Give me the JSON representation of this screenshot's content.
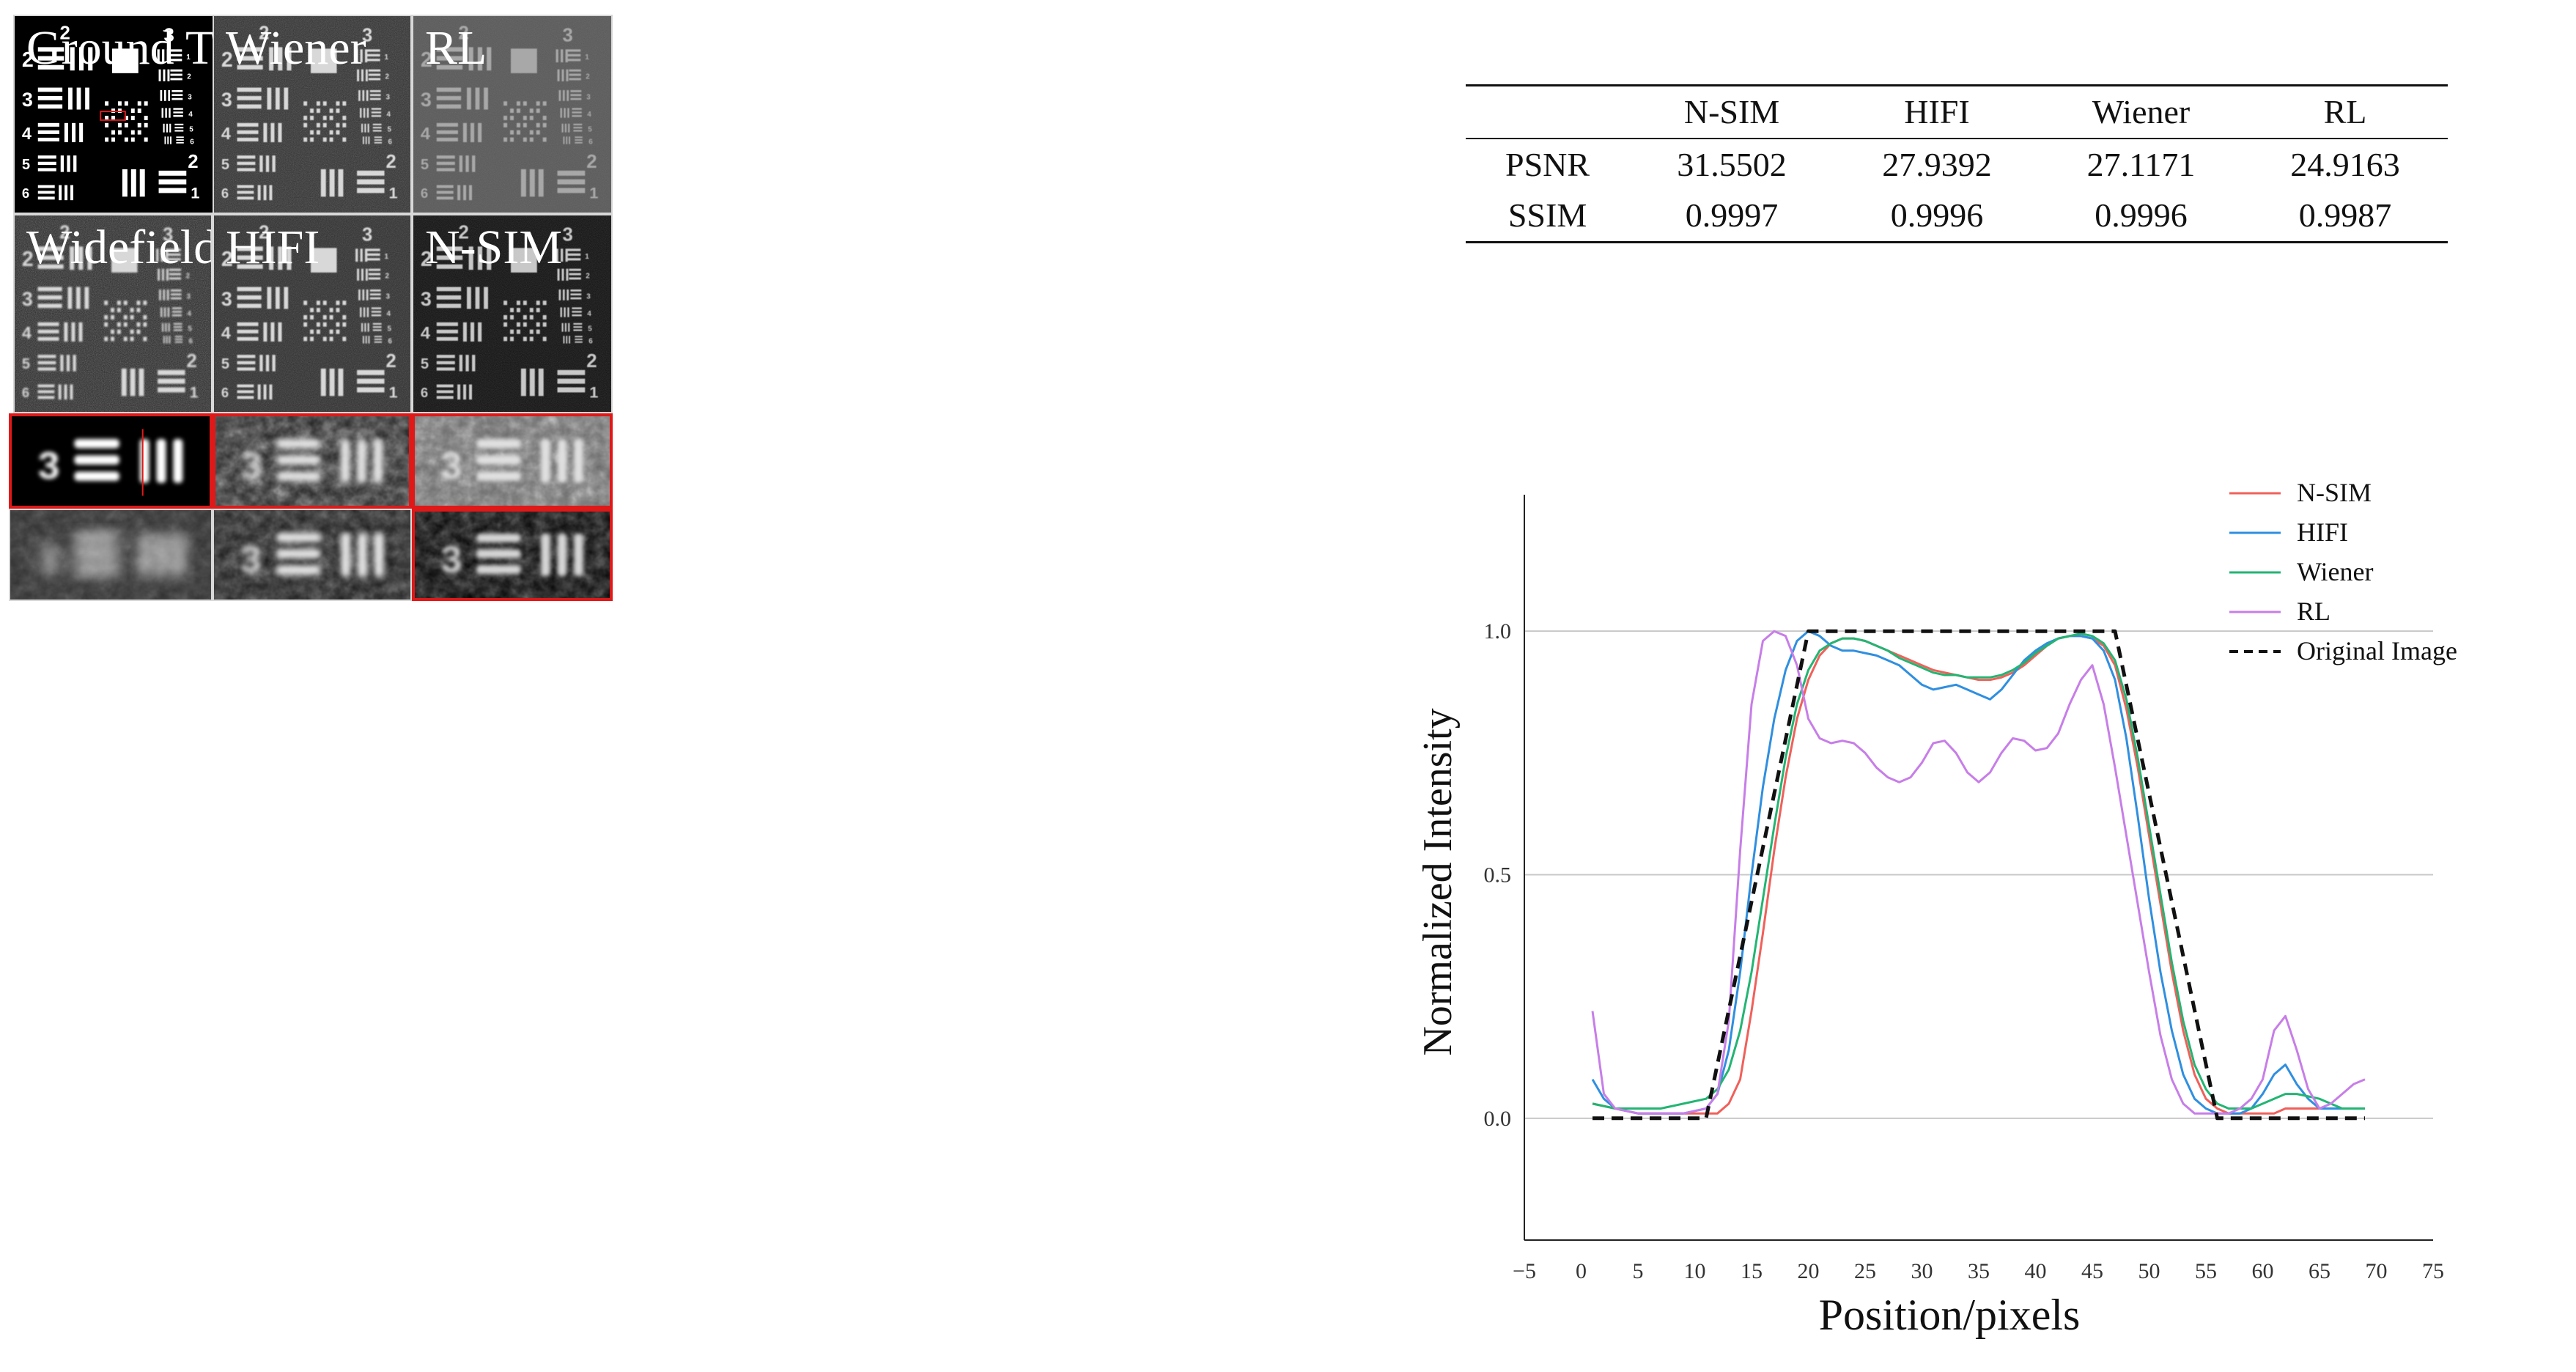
{
  "panels": [
    {
      "label": "Ground Truth",
      "bg": "#000000",
      "fg": "#ffffff",
      "noise": 0,
      "blur": 0,
      "show_roi": true
    },
    {
      "label": "Wiener",
      "bg": "#2e2e2e",
      "fg": "#d8d8d8",
      "noise": 0.35,
      "blur": 0.6,
      "show_roi": false
    },
    {
      "label": "RL",
      "bg": "#5a5a5a",
      "fg": "#a8a8a8",
      "noise": 0.15,
      "blur": 0.6,
      "show_roi": false
    },
    {
      "label": "Widefield",
      "bg": "#262626",
      "fg": "#d8d8d8",
      "noise": 0.45,
      "blur": 1.2,
      "show_roi": false
    },
    {
      "label": "HIFI",
      "bg": "#2c2c2c",
      "fg": "#d8d8d8",
      "noise": 0.3,
      "blur": 0.8,
      "show_roi": false
    },
    {
      "label": "N-SIM",
      "bg": "#111111",
      "fg": "#c8c8c8",
      "noise": 0.2,
      "blur": 0.6,
      "show_roi": false
    }
  ],
  "zooms": [
    {
      "bg": "#000000",
      "fg": "#ffffff",
      "blur": 3,
      "noise": 0,
      "line": true,
      "red_border": true
    },
    {
      "bg": "#202020",
      "fg": "#e6e6e6",
      "blur": 4,
      "noise": 0.7,
      "line": false,
      "red_border": true
    },
    {
      "bg": "#6a6a6a",
      "fg": "#e0e0e0",
      "blur": 3,
      "noise": 0.8,
      "line": false,
      "red_border": true
    },
    {
      "bg": "#303030",
      "fg": "#dddddd",
      "blur": 9,
      "noise": 0.3,
      "line": false,
      "red_border": false
    },
    {
      "bg": "#1c1c1c",
      "fg": "#e6e6e6",
      "blur": 4,
      "noise": 0.5,
      "line": false,
      "red_border": false
    },
    {
      "bg": "#000000",
      "fg": "#d6d6d6",
      "blur": 3,
      "noise": 0.5,
      "line": false,
      "red_border": true
    }
  ],
  "metrics": {
    "headers": [
      "",
      "N-SIM",
      "HIFI",
      "Wiener",
      "RL"
    ],
    "rows": [
      {
        "label": "PSNR",
        "values": [
          "31.5502",
          "27.9392",
          "27.1171",
          "24.9163"
        ]
      },
      {
        "label": "SSIM",
        "values": [
          "0.9997",
          "0.9996",
          "0.9996",
          "0.9987"
        ]
      }
    ]
  },
  "chart_data": {
    "type": "line",
    "xlabel": "Position/pixels",
    "ylabel": "Normalized Intensity",
    "xlim": [
      -5,
      75
    ],
    "ylim": [
      -0.25,
      1.25
    ],
    "xticks": [
      "−5",
      "0",
      "5",
      "10",
      "15",
      "20",
      "25",
      "30",
      "35",
      "40",
      "45",
      "50",
      "55",
      "60",
      "65",
      "70",
      "75"
    ],
    "yticks": [
      "0.0",
      "0.5",
      "1.0"
    ],
    "grid": "horizontal",
    "legend_position": "top-right",
    "series": [
      {
        "name": "N-SIM",
        "color": "#f0605a",
        "dashed": false,
        "x": [
          1,
          3,
          5,
          7,
          9,
          11,
          12,
          13,
          14,
          15,
          16,
          17,
          18,
          19,
          20,
          21,
          22,
          23,
          24,
          25,
          26,
          27,
          28,
          29,
          30,
          31,
          32,
          33,
          34,
          35,
          36,
          37,
          38,
          39,
          40,
          41,
          42,
          43,
          44,
          45,
          46,
          47,
          48,
          49,
          50,
          51,
          52,
          53,
          54,
          55,
          56,
          57,
          58,
          59,
          60,
          61,
          62,
          63,
          64,
          65,
          66,
          67,
          68,
          69
        ],
        "y": [
          0.03,
          0.02,
          0.01,
          0.01,
          0.01,
          0.01,
          0.01,
          0.03,
          0.08,
          0.22,
          0.38,
          0.55,
          0.7,
          0.82,
          0.9,
          0.95,
          0.975,
          0.985,
          0.985,
          0.98,
          0.97,
          0.96,
          0.95,
          0.94,
          0.93,
          0.92,
          0.915,
          0.91,
          0.905,
          0.9,
          0.9,
          0.905,
          0.915,
          0.93,
          0.95,
          0.97,
          0.985,
          0.99,
          0.99,
          0.985,
          0.97,
          0.93,
          0.84,
          0.72,
          0.58,
          0.44,
          0.3,
          0.18,
          0.09,
          0.04,
          0.02,
          0.01,
          0.01,
          0.01,
          0.01,
          0.01,
          0.02,
          0.02,
          0.02,
          0.02,
          0.02,
          0.02,
          0.02,
          0.02
        ]
      },
      {
        "name": "HIFI",
        "color": "#2f8fe0",
        "dashed": false,
        "x": [
          1,
          2,
          3,
          5,
          7,
          9,
          11,
          12,
          13,
          14,
          15,
          16,
          17,
          18,
          19,
          20,
          21,
          22,
          23,
          24,
          25,
          26,
          27,
          28,
          29,
          30,
          31,
          32,
          33,
          34,
          35,
          36,
          37,
          38,
          39,
          40,
          41,
          42,
          43,
          44,
          45,
          46,
          47,
          48,
          49,
          50,
          51,
          52,
          53,
          54,
          55,
          56,
          57,
          58,
          59,
          60,
          61,
          62,
          63,
          64,
          65,
          66,
          67,
          68,
          69
        ],
        "y": [
          0.08,
          0.04,
          0.02,
          0.01,
          0.01,
          0.01,
          0.02,
          0.05,
          0.14,
          0.3,
          0.5,
          0.68,
          0.82,
          0.92,
          0.98,
          1.0,
          0.99,
          0.97,
          0.96,
          0.96,
          0.955,
          0.95,
          0.94,
          0.93,
          0.91,
          0.89,
          0.88,
          0.885,
          0.89,
          0.88,
          0.87,
          0.86,
          0.88,
          0.91,
          0.94,
          0.96,
          0.975,
          0.985,
          0.99,
          0.99,
          0.985,
          0.96,
          0.9,
          0.78,
          0.62,
          0.45,
          0.3,
          0.18,
          0.09,
          0.04,
          0.02,
          0.01,
          0.01,
          0.01,
          0.02,
          0.05,
          0.09,
          0.11,
          0.07,
          0.04,
          0.02,
          0.02,
          0.02,
          0.02,
          0.02
        ]
      },
      {
        "name": "Wiener",
        "color": "#22b573",
        "dashed": false,
        "x": [
          1,
          3,
          5,
          7,
          9,
          11,
          12,
          13,
          14,
          15,
          16,
          17,
          18,
          19,
          20,
          21,
          22,
          23,
          24,
          25,
          26,
          27,
          28,
          29,
          30,
          31,
          32,
          33,
          34,
          35,
          36,
          37,
          38,
          39,
          40,
          41,
          42,
          43,
          44,
          45,
          46,
          47,
          48,
          49,
          50,
          51,
          52,
          53,
          54,
          55,
          56,
          57,
          58,
          59,
          60,
          61,
          62,
          63,
          64,
          65,
          66,
          67,
          68,
          69
        ],
        "y": [
          0.03,
          0.02,
          0.02,
          0.02,
          0.03,
          0.04,
          0.06,
          0.1,
          0.18,
          0.3,
          0.45,
          0.6,
          0.74,
          0.85,
          0.92,
          0.96,
          0.975,
          0.985,
          0.985,
          0.98,
          0.97,
          0.96,
          0.945,
          0.935,
          0.925,
          0.915,
          0.91,
          0.91,
          0.905,
          0.905,
          0.905,
          0.91,
          0.92,
          0.935,
          0.955,
          0.97,
          0.985,
          0.99,
          0.995,
          0.99,
          0.975,
          0.94,
          0.86,
          0.74,
          0.6,
          0.46,
          0.32,
          0.2,
          0.11,
          0.06,
          0.03,
          0.02,
          0.02,
          0.02,
          0.03,
          0.04,
          0.05,
          0.05,
          0.045,
          0.04,
          0.03,
          0.02,
          0.02,
          0.02
        ]
      },
      {
        "name": "RL",
        "color": "#c77ee8",
        "dashed": false,
        "x": [
          1,
          2,
          3,
          5,
          7,
          9,
          11,
          12,
          13,
          14,
          15,
          16,
          17,
          18,
          19,
          20,
          21,
          22,
          23,
          24,
          25,
          26,
          27,
          28,
          29,
          30,
          31,
          32,
          33,
          34,
          35,
          36,
          37,
          38,
          39,
          40,
          41,
          42,
          43,
          44,
          45,
          46,
          47,
          48,
          49,
          50,
          51,
          52,
          53,
          54,
          55,
          56,
          57,
          58,
          59,
          60,
          61,
          62,
          63,
          64,
          65,
          66,
          67,
          68,
          69
        ],
        "y": [
          0.22,
          0.05,
          0.02,
          0.01,
          0.01,
          0.01,
          0.02,
          0.05,
          0.2,
          0.55,
          0.85,
          0.98,
          1.0,
          0.99,
          0.93,
          0.82,
          0.78,
          0.77,
          0.775,
          0.77,
          0.75,
          0.72,
          0.7,
          0.69,
          0.7,
          0.73,
          0.77,
          0.775,
          0.75,
          0.71,
          0.69,
          0.71,
          0.75,
          0.78,
          0.775,
          0.755,
          0.76,
          0.79,
          0.85,
          0.9,
          0.93,
          0.85,
          0.72,
          0.58,
          0.44,
          0.3,
          0.17,
          0.08,
          0.03,
          0.01,
          0.01,
          0.01,
          0.01,
          0.02,
          0.04,
          0.08,
          0.18,
          0.21,
          0.14,
          0.06,
          0.02,
          0.03,
          0.05,
          0.07,
          0.08
        ]
      },
      {
        "name": "Original Image",
        "color": "#111111",
        "dashed": true,
        "x": [
          1,
          11,
          20,
          47,
          56,
          69
        ],
        "y": [
          0.0,
          0.0,
          1.0,
          1.0,
          0.0,
          0.0
        ]
      }
    ]
  }
}
